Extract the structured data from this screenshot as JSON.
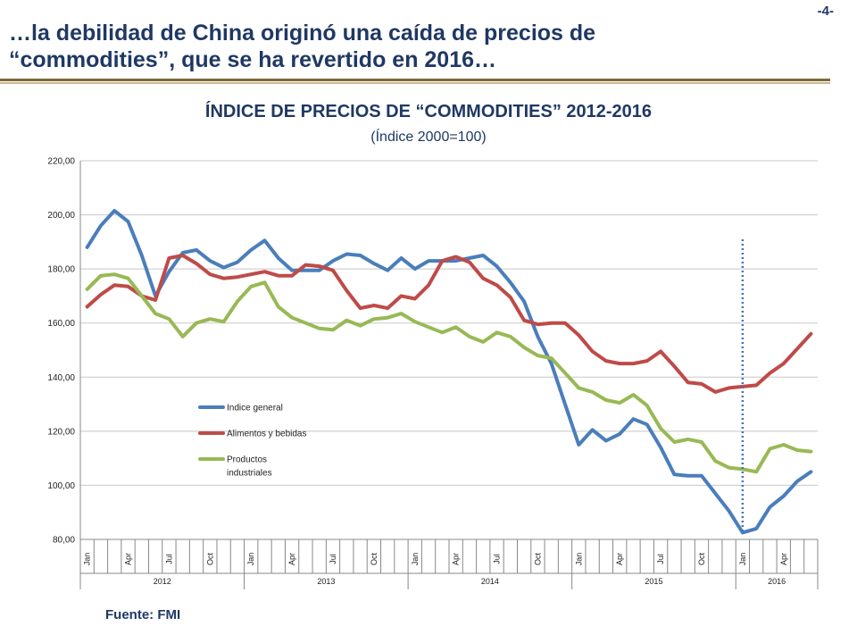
{
  "slide": {
    "title_line1": "…la debilidad de China originó una caída de precios de",
    "title_line2": "“commodities”, que se ha revertido en 2016…",
    "page_number": "-4-",
    "source": "Fuente: FMI"
  },
  "colors": {
    "accent": "#1f3864",
    "rule": "#7f6a3a"
  },
  "chart_data": {
    "type": "line",
    "title": "ÍNDICE DE PRECIOS DE “COMMODITIES” 2012-2016",
    "subtitle": "(Índice 2000=100)",
    "ylim": [
      80,
      220
    ],
    "yticks": [
      80,
      100,
      120,
      140,
      160,
      180,
      200,
      220
    ],
    "ytick_labels": [
      "80,00",
      "100,00",
      "120,00",
      "140,00",
      "160,00",
      "180,00",
      "200,00",
      "220,00"
    ],
    "grid": true,
    "legend_position": "center-left",
    "month_tick_labels": [
      "Jan",
      "",
      "",
      "Apr",
      "",
      "",
      "Jul",
      "",
      "",
      "Oct",
      "",
      "",
      "Jan",
      "",
      "",
      "Apr",
      "",
      "",
      "Jul",
      "",
      "",
      "Oct",
      "",
      "",
      "Jan",
      "",
      "",
      "Apr",
      "",
      "",
      "Jul",
      "",
      "",
      "Oct",
      "",
      "",
      "Jan",
      "",
      "",
      "Apr",
      "",
      "",
      "Jul",
      "",
      "",
      "Oct",
      "",
      "",
      "Jan",
      "",
      "",
      "Apr",
      "",
      ""
    ],
    "years": [
      {
        "label": "2012",
        "months": 12
      },
      {
        "label": "2013",
        "months": 12
      },
      {
        "label": "2014",
        "months": 12
      },
      {
        "label": "2015",
        "months": 12
      },
      {
        "label": "2016",
        "months": 6
      }
    ],
    "marker_month_index": 48,
    "series": [
      {
        "name": "Indice general",
        "color": "#4a7ebb",
        "values": [
          188,
          196,
          201.5,
          197.5,
          185,
          170,
          179,
          186,
          187,
          183,
          180.5,
          182.5,
          187,
          190.5,
          184,
          179.5,
          179.5,
          179.5,
          183,
          185.5,
          185,
          182,
          179.5,
          184,
          180,
          183,
          183,
          183,
          184,
          185,
          181,
          175,
          168,
          155,
          145,
          130,
          115,
          120.5,
          116.5,
          119,
          124.5,
          122.5,
          114,
          104,
          103.5,
          103.5,
          97,
          90.5,
          82.5,
          84,
          92,
          96,
          101.5,
          105
        ]
      },
      {
        "name": "Alimentos y bebidas",
        "color": "#be4b48",
        "values": [
          166,
          170.5,
          174,
          173.5,
          170,
          168.5,
          184,
          185,
          182,
          178,
          176.5,
          177,
          178,
          179,
          177.5,
          177.5,
          181.5,
          181,
          179.5,
          172,
          165.5,
          166.5,
          165.5,
          170,
          169,
          174,
          183,
          184.5,
          182.5,
          176.5,
          174,
          169.5,
          161,
          159.5,
          160,
          160,
          155.5,
          149.5,
          146,
          145,
          145,
          146,
          149.5,
          144,
          138,
          137.5,
          134.5,
          136,
          136.5,
          137,
          141.5,
          145,
          150.5,
          156
        ]
      },
      {
        "name": "Productos industriales",
        "color": "#98b954",
        "values": [
          172.5,
          177.5,
          178,
          176.5,
          170,
          163.5,
          161.5,
          155,
          160,
          161.5,
          160.5,
          168,
          173.5,
          175,
          166,
          162,
          160,
          158,
          157.5,
          161,
          159,
          161.5,
          162,
          163.5,
          160.5,
          158.5,
          156.5,
          158.5,
          155,
          153,
          156.5,
          155,
          151,
          148,
          147,
          141.5,
          136,
          134.5,
          131.5,
          130.5,
          133.5,
          129.5,
          121,
          116,
          117,
          116,
          109,
          106.5,
          106,
          105,
          113.5,
          115,
          113,
          112.5
        ]
      }
    ]
  }
}
